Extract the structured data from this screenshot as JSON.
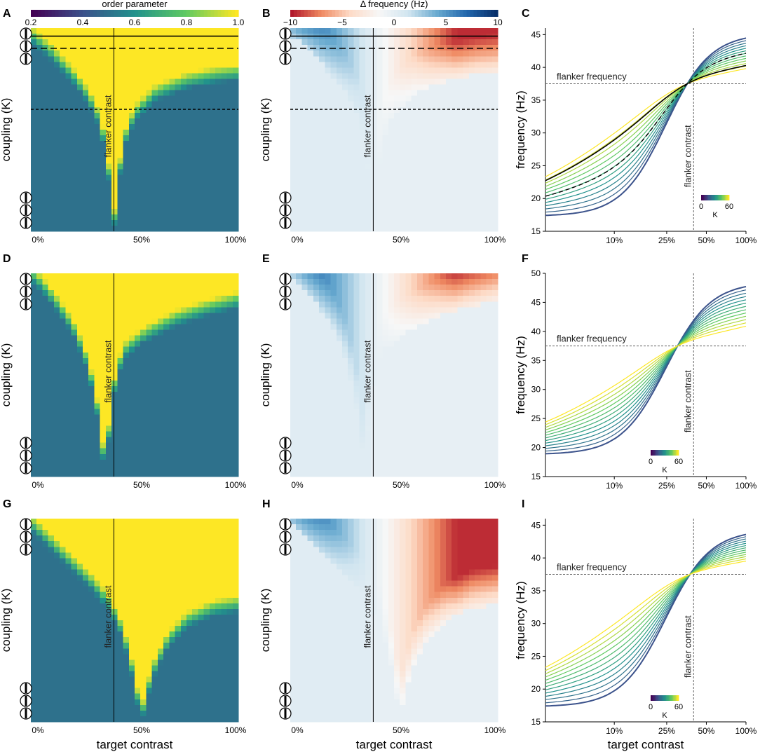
{
  "figure": {
    "xlabel": "target contrast",
    "colors": {
      "sync": "#fde725",
      "async": "#21918c",
      "viridis": [
        "#440154",
        "#3b528b",
        "#21918c",
        "#5ec962",
        "#fde725"
      ],
      "diverging": [
        "#b2182b",
        "#ef8a62",
        "#fddbc7",
        "#f7f7f7",
        "#d1e5f0",
        "#67a9cf",
        "#2166ac",
        "#08306b"
      ]
    }
  },
  "chart_data": [
    {
      "panel": "A",
      "type": "heatmap",
      "title": "",
      "xlabel": "",
      "ylabel": "coupling (K)",
      "x_ticklabels": [
        "0%",
        "50%",
        "100%"
      ],
      "y_range": [
        0,
        60
      ],
      "annotation": "flanker contrast",
      "colorbar": {
        "title": "order parameter",
        "range": [
          0.2,
          1.0
        ],
        "ticks": [
          "0.2",
          "0.4",
          "0.6",
          "0.8",
          "1.0"
        ]
      },
      "flanker_contrast": 0.4,
      "sync_boundary": [
        [
          0.0,
          0.97
        ],
        [
          0.1,
          0.88
        ],
        [
          0.2,
          0.77
        ],
        [
          0.28,
          0.66
        ],
        [
          0.33,
          0.55
        ],
        [
          0.36,
          0.42
        ],
        [
          0.38,
          0.25
        ],
        [
          0.4,
          0.04
        ],
        [
          0.42,
          0.25
        ],
        [
          0.45,
          0.45
        ],
        [
          0.5,
          0.58
        ],
        [
          0.6,
          0.68
        ],
        [
          0.75,
          0.74
        ],
        [
          0.9,
          0.77
        ],
        [
          1.0,
          0.78
        ]
      ],
      "reference_lines": [
        {
          "style": "solid",
          "K_fraction": 0.96
        },
        {
          "style": "dashed",
          "K_fraction": 0.9
        },
        {
          "style": "dotted",
          "K_fraction": 0.6
        }
      ]
    },
    {
      "panel": "B",
      "type": "heatmap",
      "title": "",
      "xlabel": "",
      "ylabel": "coupling (K)",
      "x_ticklabels": [
        "0%",
        "50%",
        "100%"
      ],
      "annotation": "flanker contrast",
      "colorbar": {
        "title": "Δ frequency (Hz)",
        "range": [
          -10,
          10
        ],
        "ticks": [
          "−10",
          "−5",
          "0",
          "5",
          "10"
        ]
      },
      "flanker_contrast": 0.4,
      "sync_boundary": [
        [
          0.0,
          0.97
        ],
        [
          0.1,
          0.88
        ],
        [
          0.2,
          0.77
        ],
        [
          0.28,
          0.66
        ],
        [
          0.33,
          0.55
        ],
        [
          0.36,
          0.42
        ],
        [
          0.38,
          0.25
        ],
        [
          0.4,
          0.04
        ],
        [
          0.42,
          0.25
        ],
        [
          0.45,
          0.45
        ],
        [
          0.5,
          0.58
        ],
        [
          0.6,
          0.68
        ],
        [
          0.75,
          0.74
        ],
        [
          0.9,
          0.77
        ],
        [
          1.0,
          0.78
        ]
      ],
      "reference_lines": [
        {
          "style": "solid",
          "K_fraction": 0.96
        },
        {
          "style": "dashed",
          "K_fraction": 0.9
        },
        {
          "style": "dotted",
          "K_fraction": 0.6
        }
      ]
    },
    {
      "panel": "C",
      "type": "line",
      "title": "",
      "xlabel": "",
      "ylabel": "frequency (Hz)",
      "x_ticklabels": [
        "10%",
        "25%",
        "50%",
        "100%"
      ],
      "x_tickvalues": [
        0.1,
        0.25,
        0.5,
        1.0
      ],
      "xscale": "log",
      "xlim": [
        0.03,
        1.0
      ],
      "ylim": [
        15,
        46
      ],
      "y_ticks": [
        15,
        20,
        25,
        30,
        35,
        40,
        45
      ],
      "flanker_frequency_label": "flanker frequency",
      "flanker_frequency": 37.5,
      "flanker_contrast_label": "flanker contrast",
      "flanker_contrast": 0.4,
      "f0_low": 17.3,
      "f0_high": 45.2,
      "n_curves": 13,
      "legend": {
        "label": "K",
        "range": [
          0,
          60
        ],
        "ticks": [
          "0",
          "60"
        ]
      },
      "black_curve_K_fraction": 1.0,
      "dashed_curve_K_fraction": 0.9
    },
    {
      "panel": "D",
      "type": "heatmap",
      "title": "",
      "xlabel": "",
      "ylabel": "coupling (K)",
      "x_ticklabels": [
        "0%",
        "50%",
        "100%"
      ],
      "annotation": "flanker contrast",
      "flanker_contrast": 0.4,
      "sync_boundary": [
        [
          0.0,
          1.0
        ],
        [
          0.05,
          0.95
        ],
        [
          0.12,
          0.86
        ],
        [
          0.2,
          0.74
        ],
        [
          0.26,
          0.6
        ],
        [
          0.3,
          0.45
        ],
        [
          0.33,
          0.28
        ],
        [
          0.35,
          0.1
        ],
        [
          0.36,
          0.02
        ],
        [
          0.38,
          0.28
        ],
        [
          0.41,
          0.5
        ],
        [
          0.45,
          0.62
        ],
        [
          0.55,
          0.7
        ],
        [
          0.7,
          0.78
        ],
        [
          0.85,
          0.83
        ],
        [
          1.0,
          0.87
        ]
      ]
    },
    {
      "panel": "E",
      "type": "heatmap",
      "title": "",
      "xlabel": "",
      "ylabel": "coupling (K)",
      "x_ticklabels": [
        "0%",
        "50%",
        "100%"
      ],
      "annotation": "flanker contrast",
      "flanker_contrast": 0.4,
      "sync_boundary": [
        [
          0.0,
          1.0
        ],
        [
          0.05,
          0.95
        ],
        [
          0.12,
          0.86
        ],
        [
          0.2,
          0.74
        ],
        [
          0.26,
          0.6
        ],
        [
          0.3,
          0.45
        ],
        [
          0.33,
          0.28
        ],
        [
          0.35,
          0.1
        ],
        [
          0.36,
          0.02
        ],
        [
          0.38,
          0.28
        ],
        [
          0.41,
          0.5
        ],
        [
          0.45,
          0.62
        ],
        [
          0.55,
          0.7
        ],
        [
          0.7,
          0.78
        ],
        [
          0.85,
          0.83
        ],
        [
          1.0,
          0.87
        ]
      ]
    },
    {
      "panel": "F",
      "type": "line",
      "title": "",
      "xlabel": "",
      "ylabel": "frequency (Hz)",
      "x_ticklabels": [
        "10%",
        "25%",
        "50%",
        "100%"
      ],
      "x_tickvalues": [
        0.1,
        0.25,
        0.5,
        1.0
      ],
      "xscale": "log",
      "xlim": [
        0.03,
        1.0
      ],
      "ylim": [
        15,
        50
      ],
      "y_ticks": [
        15,
        20,
        25,
        30,
        35,
        40,
        45,
        50
      ],
      "flanker_frequency_label": "flanker frequency",
      "flanker_frequency": 37.5,
      "flanker_contrast_label": "flanker contrast",
      "flanker_contrast": 0.4,
      "f0_low": 18.8,
      "f0_high": 48.5,
      "n_curves": 13,
      "legend": {
        "label": "K",
        "range": [
          0,
          60
        ],
        "ticks": [
          "0",
          "60"
        ]
      }
    },
    {
      "panel": "G",
      "type": "heatmap",
      "title": "",
      "xlabel": "target contrast",
      "ylabel": "coupling (K)",
      "x_ticklabels": [
        "0%",
        "50%",
        "100%"
      ],
      "annotation": "flanker contrast",
      "flanker_contrast": 0.4,
      "sync_boundary": [
        [
          0.0,
          0.98
        ],
        [
          0.1,
          0.88
        ],
        [
          0.2,
          0.78
        ],
        [
          0.3,
          0.68
        ],
        [
          0.38,
          0.58
        ],
        [
          0.44,
          0.45
        ],
        [
          0.48,
          0.3
        ],
        [
          0.51,
          0.15
        ],
        [
          0.53,
          0.02
        ],
        [
          0.56,
          0.15
        ],
        [
          0.6,
          0.28
        ],
        [
          0.66,
          0.4
        ],
        [
          0.75,
          0.5
        ],
        [
          0.88,
          0.56
        ],
        [
          1.0,
          0.58
        ]
      ]
    },
    {
      "panel": "H",
      "type": "heatmap",
      "title": "",
      "xlabel": "target contrast",
      "ylabel": "coupling (K)",
      "x_ticklabels": [
        "0%",
        "50%",
        "100%"
      ],
      "annotation": "flanker contrast",
      "flanker_contrast": 0.4,
      "sync_boundary": [
        [
          0.0,
          0.98
        ],
        [
          0.1,
          0.88
        ],
        [
          0.2,
          0.78
        ],
        [
          0.3,
          0.68
        ],
        [
          0.38,
          0.58
        ],
        [
          0.44,
          0.45
        ],
        [
          0.48,
          0.3
        ],
        [
          0.51,
          0.15
        ],
        [
          0.53,
          0.02
        ],
        [
          0.56,
          0.15
        ],
        [
          0.6,
          0.28
        ],
        [
          0.66,
          0.4
        ],
        [
          0.75,
          0.5
        ],
        [
          0.88,
          0.56
        ],
        [
          1.0,
          0.58
        ]
      ]
    },
    {
      "panel": "I",
      "type": "line",
      "title": "",
      "xlabel": "target contrast",
      "ylabel": "frequency (Hz)",
      "x_ticklabels": [
        "10%",
        "25%",
        "50%",
        "100%"
      ],
      "x_tickvalues": [
        0.1,
        0.25,
        0.5,
        1.0
      ],
      "xscale": "log",
      "xlim": [
        0.03,
        1.0
      ],
      "ylim": [
        15,
        46
      ],
      "y_ticks": [
        15,
        20,
        25,
        30,
        35,
        40,
        45
      ],
      "flanker_frequency_label": "flanker frequency",
      "flanker_frequency": 37.5,
      "flanker_contrast_label": "flanker contrast",
      "flanker_contrast": 0.4,
      "f0_low": 17.3,
      "f0_high": 44.3,
      "n_curves": 13,
      "legend": {
        "label": "K",
        "range": [
          0,
          60
        ],
        "ticks": [
          "0",
          "60"
        ]
      }
    }
  ]
}
